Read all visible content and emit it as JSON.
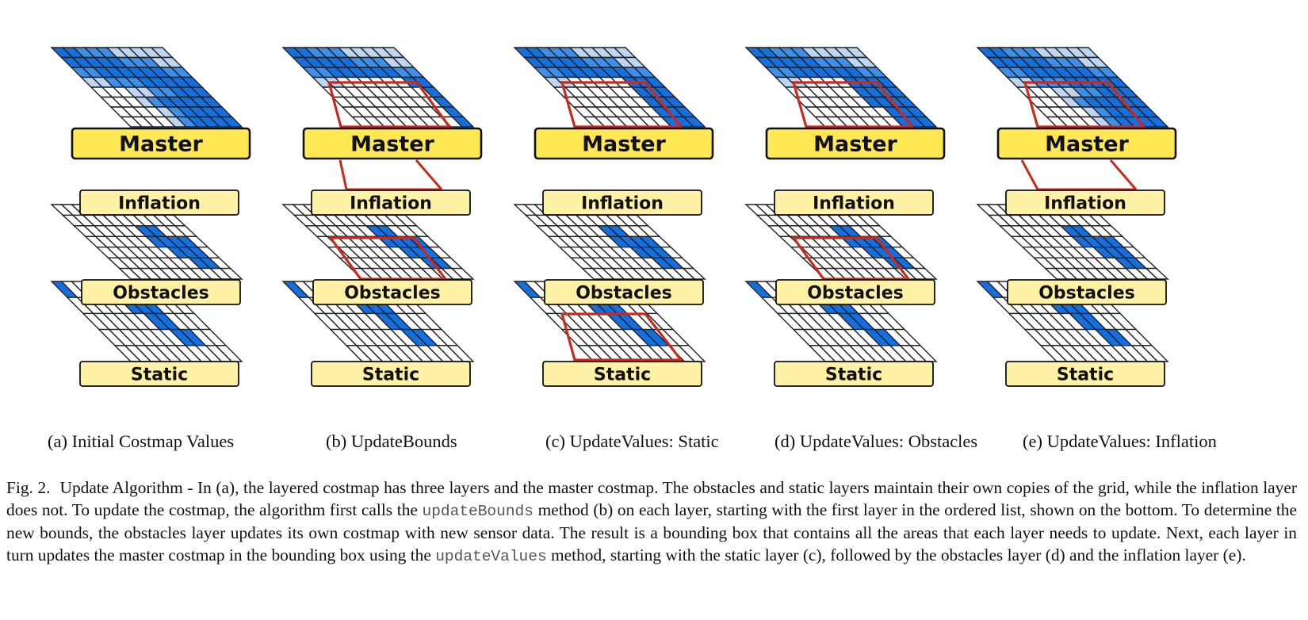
{
  "layer_labels": {
    "master": "Master",
    "inflation": "Inflation",
    "obstacles": "Obstacles",
    "static": "Static"
  },
  "colors": {
    "dark_blue": "#1470e0",
    "medium_blue": "#3c8fea",
    "light_blue": "#bcd6f3",
    "bounds_red": "#c92a1e",
    "master_label_fill": "#ffe854",
    "layer_label_fill": "#fff1a6",
    "grid_line": "#222222"
  },
  "subfigures": [
    {
      "label": "(a) Initial Costmap Values"
    },
    {
      "label": "(b) UpdateBounds"
    },
    {
      "label": "(c) UpdateValues: Static"
    },
    {
      "label": "(d) UpdateValues: Obstacles"
    },
    {
      "label": "(e) UpdateValues: Inflation"
    }
  ],
  "caption": {
    "fig_label": "Fig. 2.",
    "part1": "Update Algorithm - In (a), the layered costmap has three layers and the master costmap. The obstacles and static layers maintain their own copies of the grid, while the inflation layer does not. To update the costmap, the algorithm first calls the ",
    "code1": "updateBounds",
    "part2": " method (b) on each layer, starting with the first layer in the ordered list, shown on the bottom. To determine the new bounds, the obstacles layer updates its own costmap with new sensor data. The result is a bounding box that contains all the areas that each layer needs to update. Next, each layer in turn updates the master costmap in the bounding box using the ",
    "code2": "updateValues",
    "part3": " method, starting with the static layer (c), followed by the obstacles layer (d) and the inflation layer (e)."
  }
}
